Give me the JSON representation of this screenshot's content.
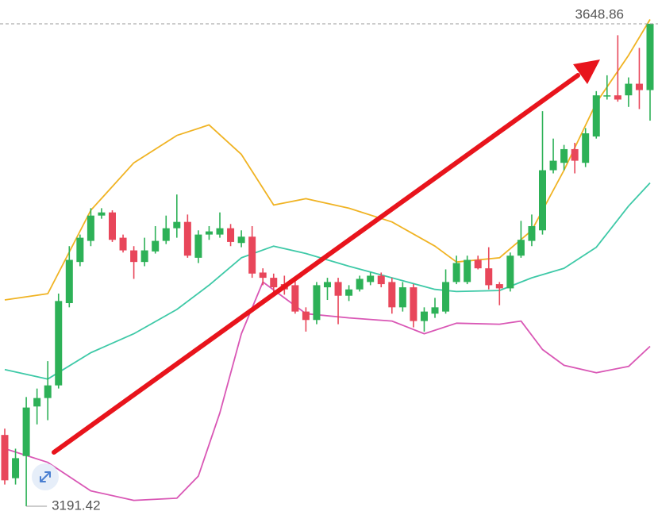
{
  "chart_data": {
    "type": "candlestick",
    "up_color": "#2db157",
    "down_color": "#e8465a",
    "ylim": [
      3186.9,
      3671.4
    ],
    "open": [
      3259,
      3218,
      3239,
      3286,
      3294,
      3306,
      3384,
      3423,
      3443,
      3467,
      3470,
      3446,
      3434,
      3423,
      3433,
      3443,
      3455,
      3461,
      3427,
      3449,
      3449,
      3455,
      3441,
      3447,
      3413,
      3408,
      3402,
      3401,
      3376,
      3368,
      3399,
      3404,
      3391,
      3397,
      3404,
      3410,
      3404,
      3380,
      3399,
      3367,
      3374,
      3376,
      3404,
      3404,
      3425,
      3417,
      3402,
      3398,
      3429,
      3443,
      3453,
      3510,
      3517,
      3530,
      3517,
      3542,
      3580,
      3581,
      3581,
      3592,
      3586
    ],
    "high": [
      3265,
      3246,
      3295,
      3303,
      3329,
      3393,
      3438,
      3449,
      3474,
      3474,
      3472,
      3449,
      3438,
      3446,
      3457,
      3467,
      3487,
      3468,
      3453,
      3457,
      3470,
      3459,
      3453,
      3457,
      3417,
      3412,
      3410,
      3407,
      3380,
      3404,
      3408,
      3408,
      3401,
      3410,
      3413,
      3413,
      3408,
      3404,
      3402,
      3380,
      3389,
      3416,
      3429,
      3429,
      3429,
      3437,
      3404,
      3432,
      3462,
      3468,
      3566,
      3540,
      3534,
      3536,
      3550,
      3585,
      3600,
      3638,
      3598,
      3626,
      3648.86
    ],
    "low": [
      3212,
      3212,
      3191.42,
      3269,
      3273,
      3303,
      3380,
      3419,
      3438,
      3464,
      3442,
      3432,
      3407,
      3419,
      3431,
      3440,
      3446,
      3427,
      3422,
      3444,
      3446,
      3438,
      3437,
      3408,
      3401,
      3393,
      3392,
      3374,
      3357,
      3364,
      3387,
      3364,
      3386,
      3395,
      3401,
      3399,
      3374,
      3376,
      3361,
      3357,
      3370,
      3374,
      3402,
      3402,
      3416,
      3397,
      3382,
      3395,
      3427,
      3438,
      3449,
      3507,
      3510,
      3507,
      3513,
      3540,
      3577,
      3575,
      3570,
      3568,
      3557
    ],
    "close": [
      3216,
      3237,
      3285,
      3294,
      3306,
      3386,
      3425,
      3446,
      3467,
      3470,
      3444,
      3434,
      3423,
      3434,
      3443,
      3455,
      3461,
      3429,
      3449,
      3452,
      3455,
      3442,
      3447,
      3412,
      3408,
      3399,
      3397,
      3376,
      3368,
      3401,
      3404,
      3391,
      3397,
      3407,
      3410,
      3402,
      3380,
      3399,
      3367,
      3376,
      3380,
      3404,
      3422,
      3425,
      3417,
      3401,
      3398,
      3429,
      3444,
      3457,
      3510,
      3519,
      3530,
      3519,
      3545,
      3581,
      3581,
      3577,
      3592,
      3586,
      3648.86
    ],
    "bands": [
      {
        "color": "#f0b323",
        "x": [
          0,
          4,
          8,
          12,
          16,
          19,
          22,
          25,
          28,
          32,
          36,
          40,
          42,
          46,
          49,
          52,
          55,
          58,
          60
        ],
        "values": [
          3387,
          3393,
          3472,
          3517,
          3543,
          3553,
          3525,
          3477,
          3483,
          3474,
          3461,
          3438,
          3423,
          3427,
          3453,
          3510,
          3574,
          3619,
          3653
        ]
      },
      {
        "color": "#3ec9a7",
        "x": [
          0,
          4,
          8,
          12,
          16,
          19,
          22,
          25,
          28,
          32,
          36,
          40,
          42,
          46,
          49,
          52,
          55,
          58,
          60
        ],
        "values": [
          3321,
          3312,
          3337,
          3355,
          3378,
          3401,
          3427,
          3438,
          3431,
          3419,
          3408,
          3397,
          3395,
          3396,
          3408,
          3417,
          3437,
          3476,
          3498
        ]
      },
      {
        "color": "#d957b5",
        "x": [
          0,
          4,
          8,
          12,
          16,
          18,
          20,
          22,
          24,
          26,
          28,
          32,
          36,
          39,
          42,
          46,
          48,
          50,
          52,
          55,
          58,
          60
        ],
        "values": [
          3246,
          3233,
          3206,
          3197,
          3199,
          3220,
          3280,
          3355,
          3404,
          3389,
          3374,
          3370,
          3367,
          3355,
          3365,
          3364,
          3367,
          3340,
          3325,
          3318,
          3324,
          3343
        ]
      }
    ]
  }
}
